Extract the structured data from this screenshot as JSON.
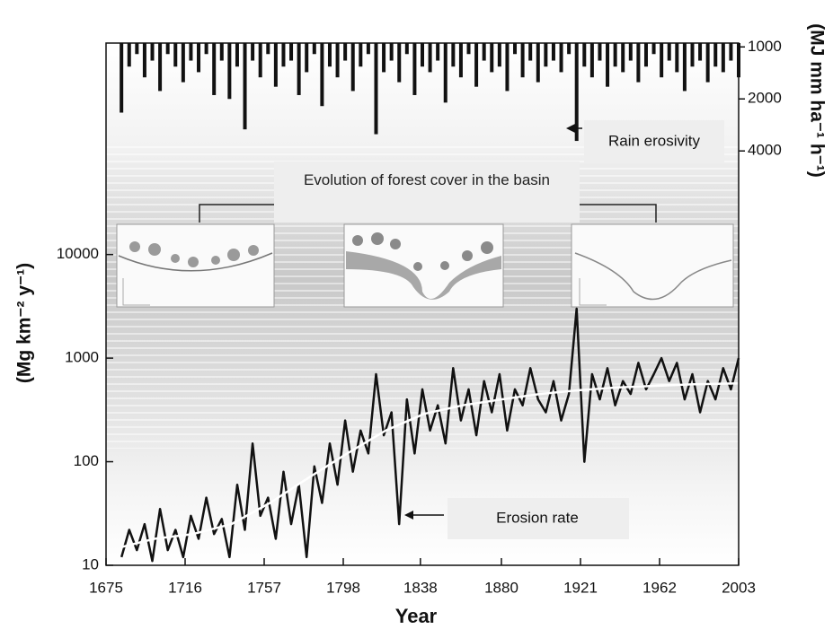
{
  "chart_data": {
    "type": "line",
    "x_label": "Year",
    "y_label": "(Mg km⁻² y⁻¹)",
    "y2_label": "(MJ mm ha⁻¹ h⁻¹)",
    "forest_note": "Evolution of forest cover in the basin",
    "xlim": [
      1675,
      2003
    ],
    "xticks": [
      1675,
      1716,
      1757,
      1798,
      1838,
      1880,
      1921,
      1962,
      2003
    ],
    "ylim": [
      10,
      1100000
    ],
    "yticks": [
      10,
      100,
      1000,
      10000
    ],
    "ylog": true,
    "y2lim": [
      1000000,
      950
    ],
    "y2ticks": [
      1000,
      2000,
      4000
    ],
    "y2log": true,
    "series": [
      {
        "name": "Erosion rate",
        "kind": "line",
        "color": "#111111",
        "x": [
          1683,
          1687,
          1691,
          1695,
          1699,
          1703,
          1707,
          1711,
          1715,
          1719,
          1723,
          1727,
          1731,
          1735,
          1739,
          1743,
          1747,
          1751,
          1755,
          1759,
          1763,
          1767,
          1771,
          1775,
          1779,
          1783,
          1787,
          1791,
          1795,
          1799,
          1803,
          1807,
          1811,
          1815,
          1819,
          1823,
          1827,
          1831,
          1835,
          1839,
          1843,
          1847,
          1851,
          1855,
          1859,
          1863,
          1867,
          1871,
          1875,
          1879,
          1883,
          1887,
          1891,
          1895,
          1899,
          1903,
          1907,
          1911,
          1915,
          1919,
          1923,
          1927,
          1931,
          1935,
          1939,
          1943,
          1947,
          1951,
          1955,
          1959,
          1963,
          1967,
          1971,
          1975,
          1979,
          1983,
          1987,
          1991,
          1995,
          1999,
          2003
        ],
        "values": [
          12,
          22,
          14,
          25,
          11,
          35,
          14,
          22,
          12,
          30,
          18,
          45,
          20,
          28,
          12,
          60,
          22,
          150,
          30,
          45,
          18,
          80,
          25,
          60,
          12,
          90,
          40,
          150,
          60,
          250,
          80,
          200,
          120,
          700,
          180,
          300,
          25,
          400,
          120,
          500,
          200,
          350,
          150,
          800,
          250,
          500,
          180,
          600,
          300,
          700,
          200,
          500,
          350,
          800,
          400,
          300,
          600,
          250,
          450,
          3000,
          100,
          700,
          400,
          800,
          350,
          600,
          450,
          900,
          500,
          700,
          1000,
          600,
          900,
          400,
          700,
          300,
          600,
          400,
          800,
          500,
          1000
        ]
      },
      {
        "kind": "line",
        "color": "#ffffff",
        "x": [
          1683,
          1700,
          1720,
          1740,
          1760,
          1780,
          1800,
          1820,
          1840,
          1860,
          1880,
          1900,
          1920,
          1940,
          1960,
          1980,
          2003
        ],
        "values": [
          15,
          18,
          20,
          25,
          40,
          70,
          120,
          200,
          290,
          350,
          400,
          450,
          490,
          520,
          540,
          560,
          570
        ]
      },
      {
        "name": "Rain erosivity",
        "kind": "bar",
        "axis": "y2",
        "color": "#111111",
        "x": [
          1683,
          1687,
          1691,
          1695,
          1699,
          1703,
          1707,
          1711,
          1715,
          1719,
          1723,
          1727,
          1731,
          1735,
          1739,
          1743,
          1747,
          1751,
          1755,
          1759,
          1763,
          1767,
          1771,
          1775,
          1779,
          1783,
          1787,
          1791,
          1795,
          1799,
          1803,
          1807,
          1811,
          1815,
          1819,
          1823,
          1827,
          1831,
          1835,
          1839,
          1843,
          1847,
          1851,
          1855,
          1859,
          1863,
          1867,
          1871,
          1875,
          1879,
          1883,
          1887,
          1891,
          1895,
          1899,
          1903,
          1907,
          1911,
          1915,
          1919,
          1923,
          1927,
          1931,
          1935,
          1939,
          1943,
          1947,
          1951,
          1955,
          1959,
          1963,
          1967,
          1971,
          1975,
          1979,
          1983,
          1987,
          1991,
          1995,
          1999,
          2003
        ],
        "values": [
          2400,
          1300,
          1100,
          1500,
          1200,
          1800,
          1100,
          1300,
          1600,
          1200,
          1400,
          1100,
          1900,
          1200,
          2000,
          1300,
          3000,
          1200,
          1500,
          1100,
          1700,
          1300,
          1200,
          1900,
          1400,
          1100,
          2200,
          1300,
          1500,
          1200,
          1800,
          1300,
          1100,
          3200,
          1400,
          1200,
          1600,
          1100,
          1900,
          1300,
          1400,
          1200,
          2100,
          1300,
          1500,
          1100,
          1700,
          1200,
          1400,
          1300,
          1800,
          1100,
          1500,
          1200,
          1600,
          1300,
          1200,
          1400,
          1100,
          3500,
          1300,
          1500,
          1200,
          1700,
          1300,
          1400,
          1200,
          1600,
          1300,
          1100,
          1500,
          1200,
          1400,
          1800,
          1300,
          1200,
          1600,
          1300,
          1400,
          1200,
          1500
        ]
      }
    ]
  }
}
